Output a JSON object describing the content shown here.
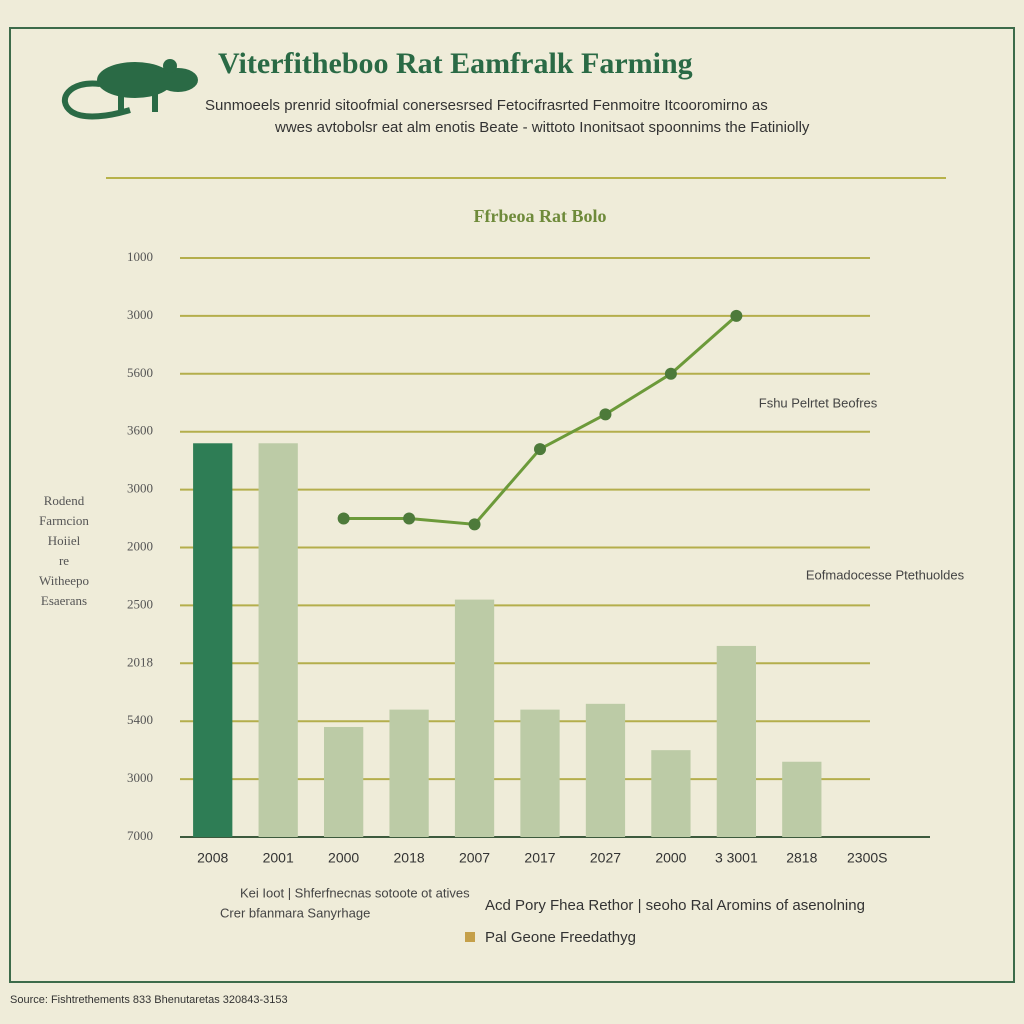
{
  "chart_data": {
    "type": "bar",
    "title": "Viterfitheboo Rat Eamfralk Farming",
    "subtitle": [
      "Sunmoeels prenrid sitoofmial conersesrsed Fetocifrasrted Fenmoitre Itcooromirno as",
      "wwes avtobolsr eat alm enotis Beate - wittoto Inonitsaot spoonnims the Fatiniolly"
    ],
    "chart_title": "Ffrbeoa Rat Bolo",
    "y_label": [
      "Rodend",
      "Farmcion",
      "Hoiiel",
      "re",
      "Witheepo",
      "Esaerans"
    ],
    "categories": [
      "2008",
      "2001",
      "2000",
      "2018",
      "2007",
      "2017",
      "2027",
      "2000",
      "3 3001",
      "2818",
      "2300S"
    ],
    "values": [
      6.8,
      6.8,
      1.9,
      2.2,
      4.1,
      2.2,
      2.3,
      1.5,
      3.3,
      1.3,
      null
    ],
    "colors": [
      "#2e7d55",
      "#bccba6",
      "#bccba6",
      "#bccba6",
      "#bccba6",
      "#bccba6",
      "#bccba6",
      "#bccba6",
      "#bccba6",
      "#bccba6",
      "#bccba6"
    ],
    "line": {
      "color": "#6c9a3a",
      "values": [
        null,
        null,
        5.5,
        5.5,
        5.4,
        6.7,
        7.3,
        8.0,
        9.0,
        null,
        null
      ]
    },
    "ylim": [
      0,
      10
    ],
    "yticks": [
      {
        "value": 0,
        "label": "7000"
      },
      {
        "value": 1,
        "label": "3000"
      },
      {
        "value": 2,
        "label": "5400"
      },
      {
        "value": 3,
        "label": "2018"
      },
      {
        "value": 4,
        "label": "2500"
      },
      {
        "value": 5,
        "label": "2000"
      },
      {
        "value": 6,
        "label": "3000"
      },
      {
        "value": 7,
        "label": "3600"
      },
      {
        "value": 8,
        "label": "5600"
      },
      {
        "value": 9,
        "label": "3000"
      },
      {
        "value": 10,
        "label": "1000"
      }
    ],
    "grid": true,
    "annotations": [
      "Fshu Pelrtet Beofres",
      "Eofmadocesse Ptethuoldes"
    ],
    "legend": [
      "Kei Ioot | Shferfnecnas   sotoote ot atives",
      "Crer bfanmara Sanyrhage",
      "Acd Pory Fhea Rethor  |  seoho Ral Aromins of asenolning",
      "Pal Geone Freedathyg"
    ],
    "source": "Source: Fishtrethements 833 Bhenutaretas 320843-3153"
  }
}
